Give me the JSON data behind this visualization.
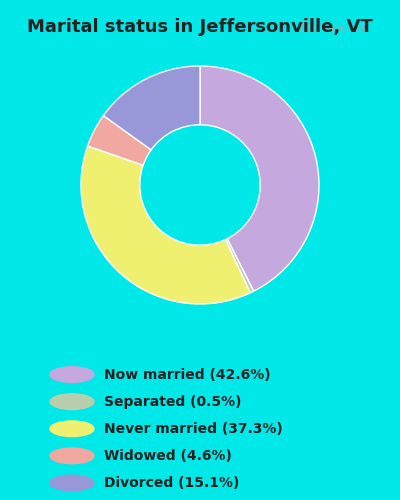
{
  "title": "Marital status in Jeffersonville, VT",
  "title_fontsize": 13,
  "background_color_outer": "#00e8e8",
  "background_color_inner": "#e8f5ec",
  "slices": [
    {
      "label": "Now married (42.6%)",
      "value": 42.6,
      "color": "#c4a8de"
    },
    {
      "label": "Separated (0.5%)",
      "value": 0.5,
      "color": "#b8ceac"
    },
    {
      "label": "Never married (37.3%)",
      "value": 37.3,
      "color": "#f0f070"
    },
    {
      "label": "Widowed (4.6%)",
      "value": 4.6,
      "color": "#f0a8a0"
    },
    {
      "label": "Divorced (15.1%)",
      "value": 15.1,
      "color": "#9898d8"
    }
  ],
  "donut_width": 0.42,
  "startangle": 90,
  "watermark": "City-Data.com",
  "legend_label_fontsize": 10,
  "title_color": "#222222",
  "legend_text_color": "#222222"
}
